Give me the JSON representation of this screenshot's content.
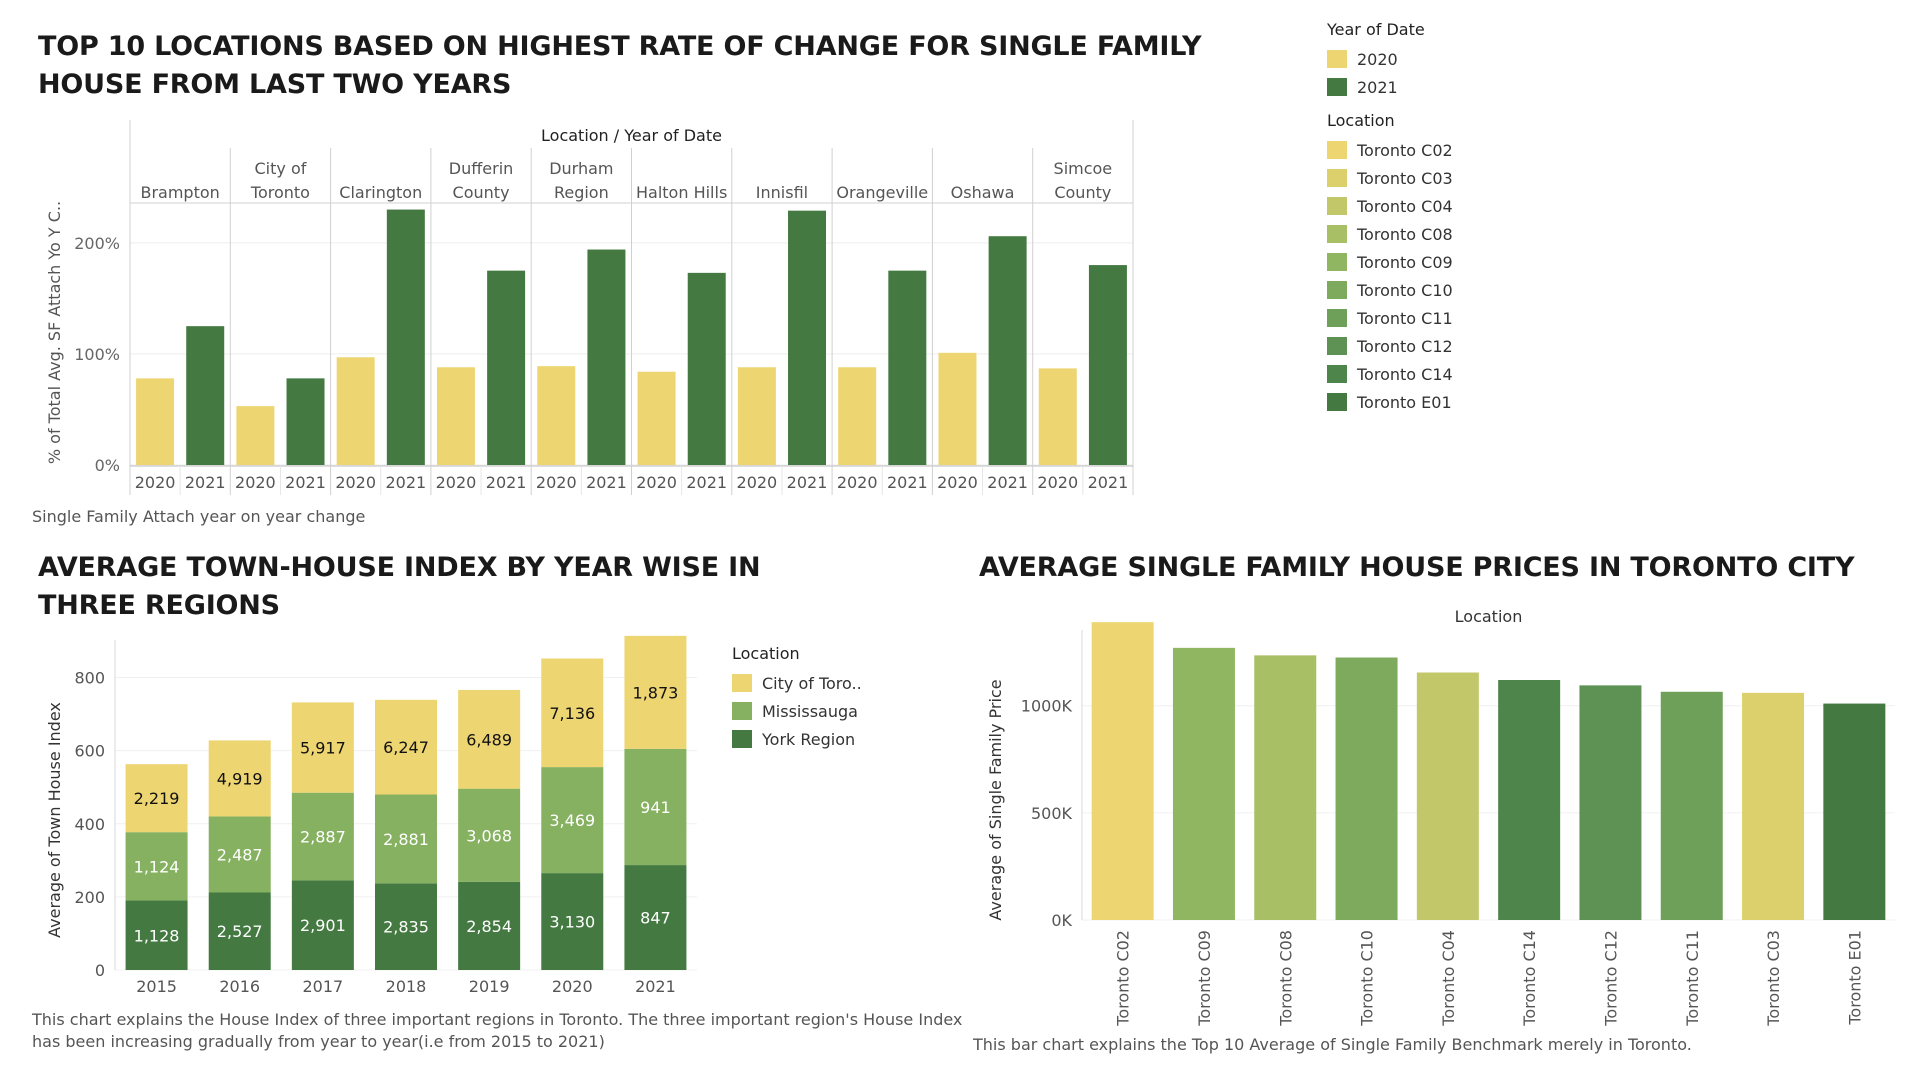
{
  "colors": {
    "c2020": "#EDD572",
    "c2021": "#447A41",
    "toronto_c02": "#EDD572",
    "toronto_c03": "#DCD06C",
    "toronto_c04": "#C2C86A",
    "toronto_c08": "#A9BF66",
    "toronto_c09": "#91B661",
    "toronto_c10": "#7DAA5C",
    "toronto_c11": "#6FA05A",
    "toronto_c12": "#5E9255",
    "toronto_c14": "#4E854B",
    "toronto_e01": "#447A41",
    "city_of_toronto": "#EDD572",
    "mississauga": "#86B160",
    "york_region": "#447A41"
  },
  "chart1": {
    "title_line1": "TOP 10 LOCATIONS BASED ON HIGHEST RATE OF CHANGE FOR SINGLE FAMILY",
    "title_line2": "HOUSE FROM LAST TWO YEARS",
    "caption": "Single Family Attach year on year change"
  },
  "legend1": {
    "year_title": "Year of Date",
    "years": [
      "2020",
      "2021"
    ],
    "location_title": "Location",
    "locations": [
      "Toronto C02",
      "Toronto C03",
      "Toronto C04",
      "Toronto C08",
      "Toronto C09",
      "Toronto C10",
      "Toronto C11",
      "Toronto C12",
      "Toronto C14",
      "Toronto E01"
    ]
  },
  "chart2": {
    "title_line1": "AVERAGE TOWN-HOUSE INDEX  BY YEAR WISE IN",
    "title_line2": "THREE REGIONS",
    "caption_line1": "This chart explains the House Index of three important regions in Toronto. The three important region's House Index",
    "caption_line2": "has been increasing gradually from year to year(i.e from 2015 to 2021)",
    "legend_title": "Location",
    "legend": [
      "City of Toro..",
      "Mississauga",
      "York Region"
    ]
  },
  "chart3": {
    "title": "AVERAGE SINGLE FAMILY HOUSE PRICES IN TORONTO CITY",
    "caption": "This bar chart explains the Top 10  Average of Single Family Benchmark merely in Toronto."
  },
  "chart_data": [
    {
      "type": "bar",
      "header": "Location  /  Year of Date",
      "ylabel": "% of Total Avg. SF Attach Yo Y C..",
      "yticks": [
        "0%",
        "100%",
        "200%"
      ],
      "ylim": [
        0,
        235
      ],
      "groups": [
        {
          "name": [
            "Brampton"
          ],
          "years": [
            "2020",
            "2021"
          ],
          "values": [
            78,
            125
          ]
        },
        {
          "name": [
            "City of",
            "Toronto"
          ],
          "years": [
            "2020",
            "2021"
          ],
          "values": [
            53,
            78
          ]
        },
        {
          "name": [
            "Clarington"
          ],
          "years": [
            "2020",
            "2021"
          ],
          "values": [
            97,
            230
          ]
        },
        {
          "name": [
            "Dufferin",
            "County"
          ],
          "years": [
            "2020",
            "2021"
          ],
          "values": [
            88,
            175
          ]
        },
        {
          "name": [
            "Durham",
            "Region"
          ],
          "years": [
            "2020",
            "2021"
          ],
          "values": [
            89,
            194
          ]
        },
        {
          "name": [
            "Halton Hills"
          ],
          "years": [
            "2020",
            "2021"
          ],
          "values": [
            84,
            173
          ]
        },
        {
          "name": [
            "Innisfil"
          ],
          "years": [
            "2020",
            "2021"
          ],
          "values": [
            88,
            229
          ]
        },
        {
          "name": [
            "Orangeville"
          ],
          "years": [
            "2020",
            "2021"
          ],
          "values": [
            88,
            175
          ]
        },
        {
          "name": [
            "Oshawa"
          ],
          "years": [
            "2020",
            "2021"
          ],
          "values": [
            101,
            206
          ]
        },
        {
          "name": [
            "Simcoe",
            "County"
          ],
          "years": [
            "2020",
            "2021"
          ],
          "values": [
            87,
            180
          ]
        }
      ]
    },
    {
      "type": "bar",
      "stacked": true,
      "ylabel": "Average of Town House Index",
      "yticks": [
        "0",
        "200",
        "400",
        "600",
        "800"
      ],
      "ylim": [
        0,
        930
      ],
      "categories": [
        "2015",
        "2016",
        "2017",
        "2018",
        "2019",
        "2020",
        "2021"
      ],
      "series": [
        {
          "name": "York Region",
          "values": [
            190,
            212,
            245,
            237,
            241,
            265,
            287
          ],
          "labels": [
            "1,128",
            "2,527",
            "2,901",
            "2,835",
            "2,854",
            "3,130",
            "847"
          ]
        },
        {
          "name": "Mississauga",
          "values": [
            187,
            208,
            240,
            243,
            255,
            290,
            318
          ],
          "labels": [
            "1,124",
            "2,487",
            "2,887",
            "2,881",
            "3,068",
            "3,469",
            "941"
          ]
        },
        {
          "name": "City of Toro..",
          "values": [
            186,
            208,
            247,
            259,
            270,
            297,
            309
          ],
          "labels": [
            "2,219",
            "4,919",
            "5,917",
            "6,247",
            "6,489",
            "7,136",
            "1,873"
          ]
        }
      ]
    },
    {
      "type": "bar",
      "header": "Location",
      "ylabel": "Average of Single Family Price",
      "yticks": [
        "0K",
        "500K",
        "1000K"
      ],
      "ylim": [
        0,
        1400000
      ],
      "categories": [
        "Toronto C02",
        "Toronto C09",
        "Toronto C08",
        "Toronto C10",
        "Toronto C04",
        "Toronto C14",
        "Toronto C12",
        "Toronto C11",
        "Toronto C03",
        "Toronto E01"
      ],
      "values": [
        1390000,
        1270000,
        1235000,
        1225000,
        1155000,
        1120000,
        1095000,
        1065000,
        1060000,
        1010000
      ]
    }
  ]
}
